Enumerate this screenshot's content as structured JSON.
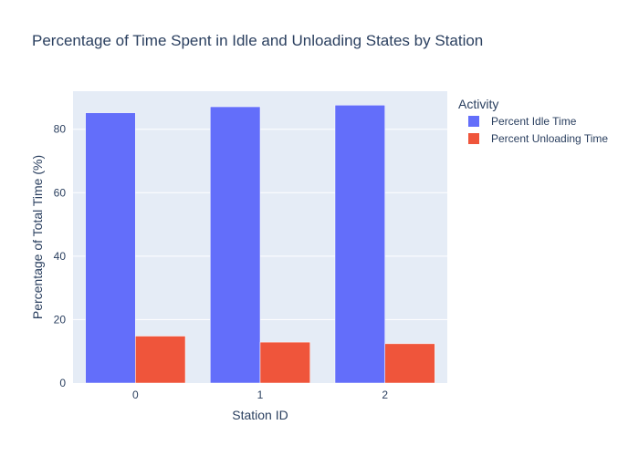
{
  "chart_data": {
    "type": "bar",
    "title": "Percentage of Time Spent in Idle and Unloading States by Station",
    "xlabel": "Station ID",
    "ylabel": "Percentage of Total Time (%)",
    "categories": [
      "0",
      "1",
      "2"
    ],
    "ylim": [
      0,
      92
    ],
    "yticks": [
      0,
      20,
      40,
      60,
      80
    ],
    "grid": true,
    "legend": {
      "title": "Activity",
      "position": "right"
    },
    "series": [
      {
        "name": "Percent Idle Time",
        "color": "#636efa",
        "values": [
          85.2,
          87.1,
          87.6
        ]
      },
      {
        "name": "Percent Unloading Time",
        "color": "#ef553b",
        "values": [
          14.8,
          12.9,
          12.4
        ]
      }
    ]
  }
}
